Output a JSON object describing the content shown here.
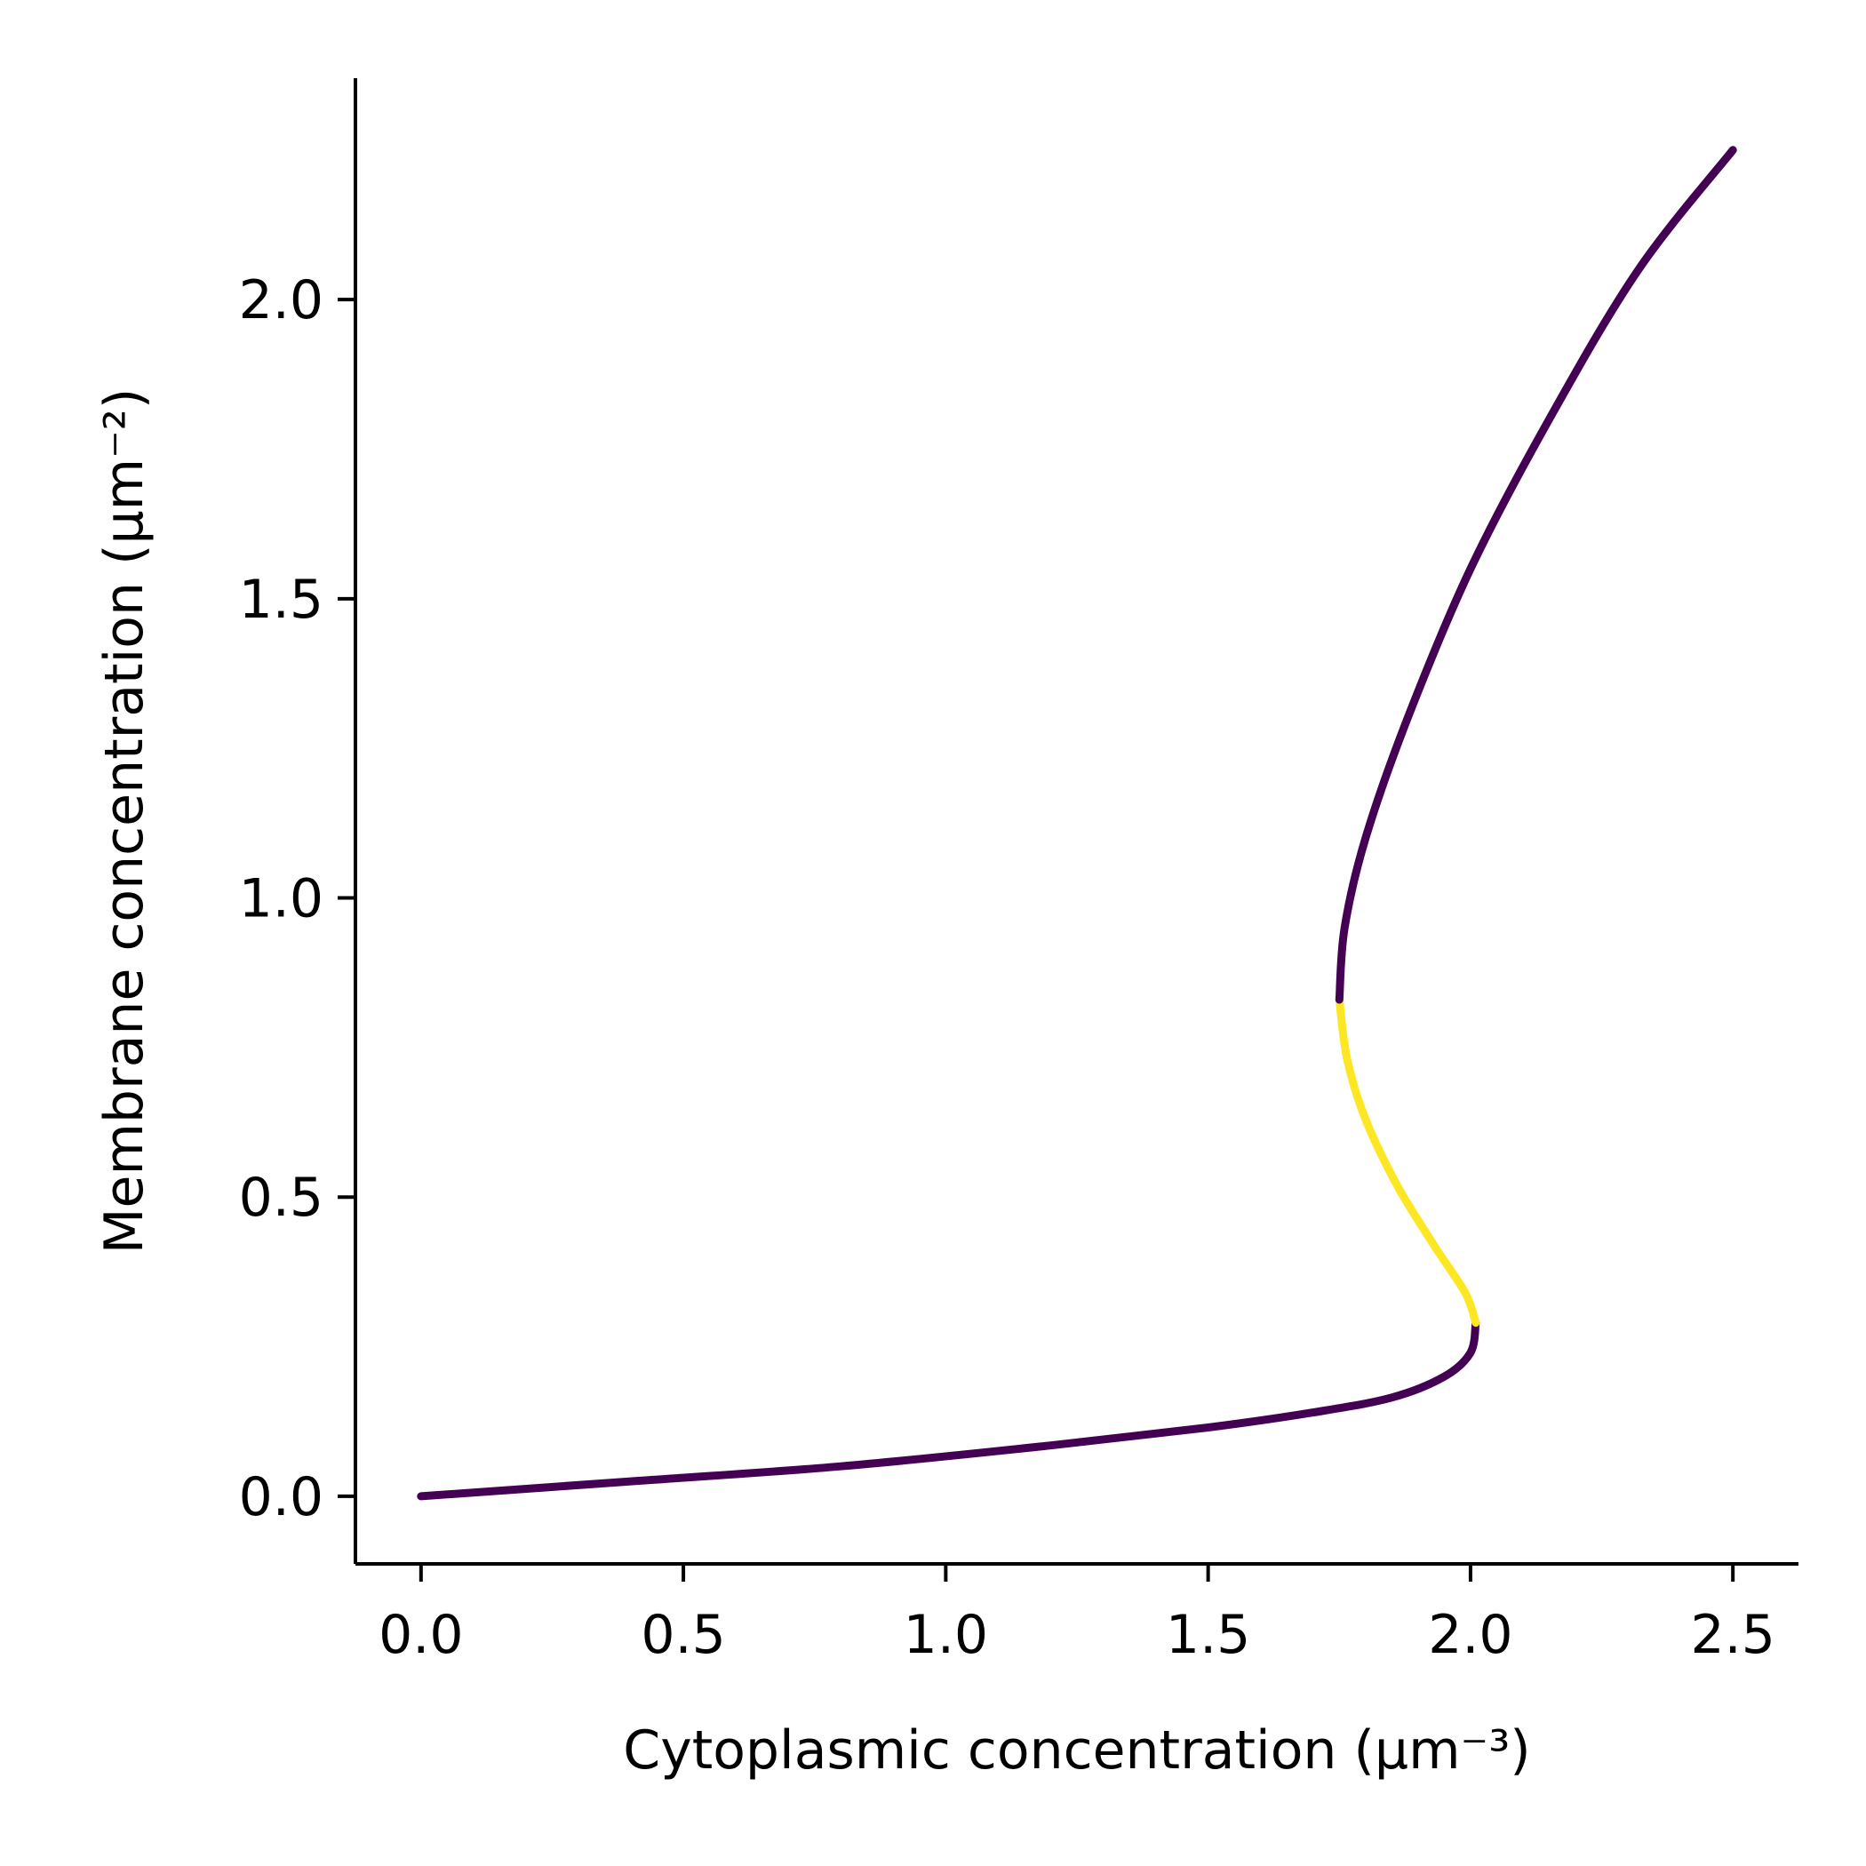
{
  "chart_data": {
    "type": "line",
    "title": "",
    "xlabel": "Cytoplasmic concentration (µm⁻³)",
    "ylabel": "Membrane concentration (µm⁻²)",
    "xlim": [
      -0.125,
      2.625
    ],
    "ylim": [
      -0.113,
      2.37
    ],
    "xticks": [
      0.0,
      0.5,
      1.0,
      1.5,
      2.0,
      2.5
    ],
    "yticks": [
      0.0,
      0.5,
      1.0,
      1.5,
      2.0
    ],
    "xtick_labels": [
      "0.0",
      "0.5",
      "1.0",
      "1.5",
      "2.0",
      "2.5"
    ],
    "ytick_labels": [
      "0.0",
      "0.5",
      "1.0",
      "1.5",
      "2.0"
    ],
    "grid": false,
    "spines": [
      "left",
      "bottom"
    ],
    "colors": {
      "stable": "#440154",
      "unstable": "#fde725"
    },
    "series": [
      {
        "stability": "stable",
        "points": [
          [
            0.0,
            0.0
          ],
          [
            0.4,
            0.025
          ],
          [
            0.8,
            0.05
          ],
          [
            1.2,
            0.085
          ],
          [
            1.5,
            0.115
          ],
          [
            1.7,
            0.14
          ],
          [
            1.85,
            0.165
          ],
          [
            1.95,
            0.2
          ],
          [
            2.0,
            0.24
          ],
          [
            2.01,
            0.29
          ]
        ]
      },
      {
        "stability": "unstable",
        "points": [
          [
            2.01,
            0.29
          ],
          [
            1.99,
            0.34
          ],
          [
            1.93,
            0.42
          ],
          [
            1.86,
            0.52
          ],
          [
            1.8,
            0.63
          ],
          [
            1.765,
            0.73
          ],
          [
            1.75,
            0.83
          ]
        ]
      },
      {
        "stability": "stable",
        "points": [
          [
            1.75,
            0.83
          ],
          [
            1.76,
            0.95
          ],
          [
            1.8,
            1.1
          ],
          [
            1.88,
            1.3
          ],
          [
            2.0,
            1.55
          ],
          [
            2.15,
            1.8
          ],
          [
            2.32,
            2.05
          ],
          [
            2.5,
            2.25
          ]
        ]
      }
    ]
  }
}
